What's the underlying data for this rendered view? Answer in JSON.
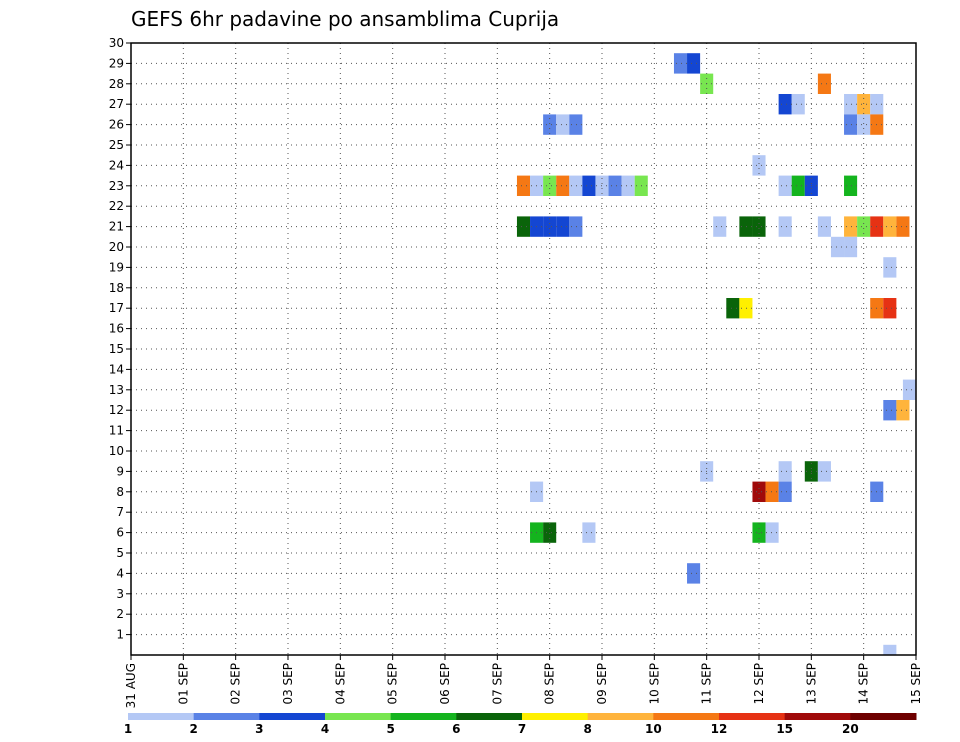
{
  "chart_data": {
    "type": "heatmap",
    "title": "GEFS 6hr padavine po ansamblima Cuprija",
    "xlabel": "",
    "ylabel": "",
    "x_tick_labels": [
      "31 AUG",
      "01 SEP",
      "02 SEP",
      "03 SEP",
      "04 SEP",
      "05 SEP",
      "06 SEP",
      "07 SEP",
      "08 SEP",
      "09 SEP",
      "10 SEP",
      "11 SEP",
      "12 SEP",
      "13 SEP",
      "14 SEP",
      "15 SEP"
    ],
    "x_unit": "day offset from 31 AUG, 6-hour steps",
    "xlim": [
      0,
      15
    ],
    "y_tick_labels": [
      "1",
      "2",
      "3",
      "4",
      "5",
      "6",
      "7",
      "8",
      "9",
      "10",
      "11",
      "12",
      "13",
      "14",
      "15",
      "16",
      "17",
      "18",
      "19",
      "20",
      "21",
      "22",
      "23",
      "24",
      "25",
      "26",
      "27",
      "28",
      "29",
      "30"
    ],
    "ylim": [
      0,
      30
    ],
    "grid": true,
    "colorbar": {
      "labels": [
        "1",
        "2",
        "3",
        "4",
        "5",
        "6",
        "7",
        "8",
        "10",
        "12",
        "15",
        "20"
      ],
      "colors": [
        "#b4c8f5",
        "#5a82e6",
        "#1446d2",
        "#78e650",
        "#14b41e",
        "#0a640a",
        "#fff000",
        "#ffb43c",
        "#f57814",
        "#e63214",
        "#a00a0a",
        "#6e0000"
      ]
    },
    "cells": [
      {
        "member": 29,
        "day": 10.5,
        "value": 2
      },
      {
        "member": 29,
        "day": 10.75,
        "value": 3
      },
      {
        "member": 28,
        "day": 11.0,
        "value": 4
      },
      {
        "member": 28,
        "day": 13.25,
        "value": 10
      },
      {
        "member": 27,
        "day": 12.5,
        "value": 3
      },
      {
        "member": 27,
        "day": 12.75,
        "value": 1
      },
      {
        "member": 27,
        "day": 13.75,
        "value": 1
      },
      {
        "member": 27,
        "day": 14.0,
        "value": 8
      },
      {
        "member": 27,
        "day": 14.25,
        "value": 1
      },
      {
        "member": 26,
        "day": 8.0,
        "value": 2
      },
      {
        "member": 26,
        "day": 8.25,
        "value": 1
      },
      {
        "member": 26,
        "day": 8.5,
        "value": 2
      },
      {
        "member": 26,
        "day": 13.75,
        "value": 2
      },
      {
        "member": 26,
        "day": 14.0,
        "value": 1
      },
      {
        "member": 26,
        "day": 14.25,
        "value": 10
      },
      {
        "member": 24,
        "day": 12.0,
        "value": 1
      },
      {
        "member": 23,
        "day": 7.5,
        "value": 10
      },
      {
        "member": 23,
        "day": 7.75,
        "value": 1
      },
      {
        "member": 23,
        "day": 8.0,
        "value": 4
      },
      {
        "member": 23,
        "day": 8.25,
        "value": 10
      },
      {
        "member": 23,
        "day": 8.5,
        "value": 1
      },
      {
        "member": 23,
        "day": 8.75,
        "value": 3
      },
      {
        "member": 23,
        "day": 9.0,
        "value": 1
      },
      {
        "member": 23,
        "day": 9.25,
        "value": 2
      },
      {
        "member": 23,
        "day": 9.5,
        "value": 1
      },
      {
        "member": 23,
        "day": 9.75,
        "value": 4
      },
      {
        "member": 23,
        "day": 12.5,
        "value": 1
      },
      {
        "member": 23,
        "day": 12.75,
        "value": 5
      },
      {
        "member": 23,
        "day": 13.0,
        "value": 3
      },
      {
        "member": 23,
        "day": 13.75,
        "value": 5
      },
      {
        "member": 21,
        "day": 7.5,
        "value": 6
      },
      {
        "member": 21,
        "day": 7.75,
        "value": 3
      },
      {
        "member": 21,
        "day": 8.0,
        "value": 3
      },
      {
        "member": 21,
        "day": 8.25,
        "value": 3
      },
      {
        "member": 21,
        "day": 8.5,
        "value": 2
      },
      {
        "member": 21,
        "day": 11.25,
        "value": 1
      },
      {
        "member": 21,
        "day": 11.75,
        "value": 6
      },
      {
        "member": 21,
        "day": 12.0,
        "value": 6
      },
      {
        "member": 21,
        "day": 12.5,
        "value": 1
      },
      {
        "member": 21,
        "day": 13.25,
        "value": 1
      },
      {
        "member": 21,
        "day": 13.75,
        "value": 8
      },
      {
        "member": 21,
        "day": 14.0,
        "value": 4
      },
      {
        "member": 21,
        "day": 14.25,
        "value": 12
      },
      {
        "member": 21,
        "day": 14.5,
        "value": 8
      },
      {
        "member": 21,
        "day": 14.75,
        "value": 10
      },
      {
        "member": 20,
        "day": 13.5,
        "value": 1
      },
      {
        "member": 20,
        "day": 13.75,
        "value": 1
      },
      {
        "member": 19,
        "day": 14.5,
        "value": 1
      },
      {
        "member": 17,
        "day": 11.5,
        "value": 6
      },
      {
        "member": 17,
        "day": 11.75,
        "value": 7
      },
      {
        "member": 17,
        "day": 14.25,
        "value": 10
      },
      {
        "member": 17,
        "day": 14.5,
        "value": 12
      },
      {
        "member": 13,
        "day": 14.875,
        "value": 1
      },
      {
        "member": 12,
        "day": 14.5,
        "value": 2
      },
      {
        "member": 12,
        "day": 14.75,
        "value": 8
      },
      {
        "member": 9,
        "day": 11.0,
        "value": 1
      },
      {
        "member": 9,
        "day": 12.5,
        "value": 1
      },
      {
        "member": 9,
        "day": 13.0,
        "value": 6
      },
      {
        "member": 9,
        "day": 13.25,
        "value": 1
      },
      {
        "member": 8,
        "day": 7.75,
        "value": 1
      },
      {
        "member": 8,
        "day": 12.0,
        "value": 15
      },
      {
        "member": 8,
        "day": 12.25,
        "value": 10
      },
      {
        "member": 8,
        "day": 12.5,
        "value": 2
      },
      {
        "member": 8,
        "day": 14.25,
        "value": 2
      },
      {
        "member": 6,
        "day": 7.75,
        "value": 5
      },
      {
        "member": 6,
        "day": 8.0,
        "value": 6
      },
      {
        "member": 6,
        "day": 8.75,
        "value": 1
      },
      {
        "member": 6,
        "day": 12.0,
        "value": 5
      },
      {
        "member": 6,
        "day": 12.25,
        "value": 1
      },
      {
        "member": 4,
        "day": 10.75,
        "value": 2
      },
      {
        "member": 0,
        "day": 14.5,
        "value": 1
      }
    ]
  }
}
